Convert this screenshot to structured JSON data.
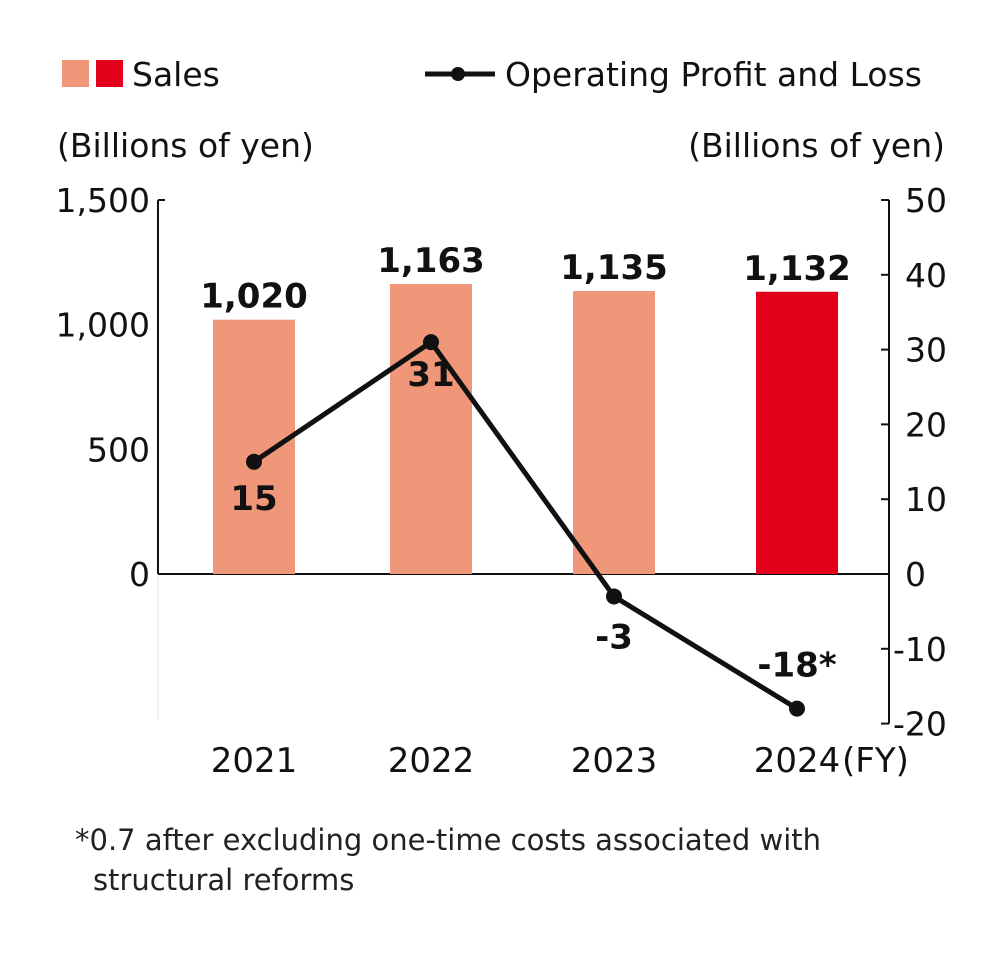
{
  "chart_data": {
    "type": "bar+line",
    "categories": [
      "2021",
      "2022",
      "2023",
      "2024"
    ],
    "x_unit_label": "(FY)",
    "series": [
      {
        "name": "Sales",
        "type": "bar",
        "axis": "left",
        "values": [
          1020,
          1163,
          1135,
          1132
        ],
        "labels": [
          "1,020",
          "1,163",
          "1,135",
          "1,132"
        ],
        "colors": [
          "#f0977a",
          "#f0977a",
          "#f0977a",
          "#e2001a"
        ]
      },
      {
        "name": "Operating Profit and Loss",
        "type": "line",
        "axis": "right",
        "values": [
          15,
          31,
          -3,
          -18
        ],
        "labels": [
          "15",
          "31",
          "-3",
          "-18*"
        ],
        "color": "#111111"
      }
    ],
    "left_axis": {
      "label": "(Billions of yen)",
      "range": [
        -580,
        1500
      ],
      "ticks": [
        0,
        500,
        1000,
        1500
      ],
      "tick_labels": [
        "0",
        "500",
        "1,000",
        "1,500"
      ]
    },
    "right_axis": {
      "label": "(Billions of yen)",
      "range": [
        -20,
        50
      ],
      "ticks": [
        -20,
        -10,
        0,
        10,
        20,
        30,
        40,
        50
      ],
      "tick_labels": [
        "-20",
        "-10",
        "0",
        "10",
        "20",
        "30",
        "40",
        "50"
      ]
    },
    "grid": false,
    "legend": {
      "position": "top",
      "items": [
        "Sales",
        "Operating Profit and Loss"
      ]
    },
    "footnote": [
      "*0.7 after excluding one-time costs associated with",
      "structural reforms"
    ]
  }
}
